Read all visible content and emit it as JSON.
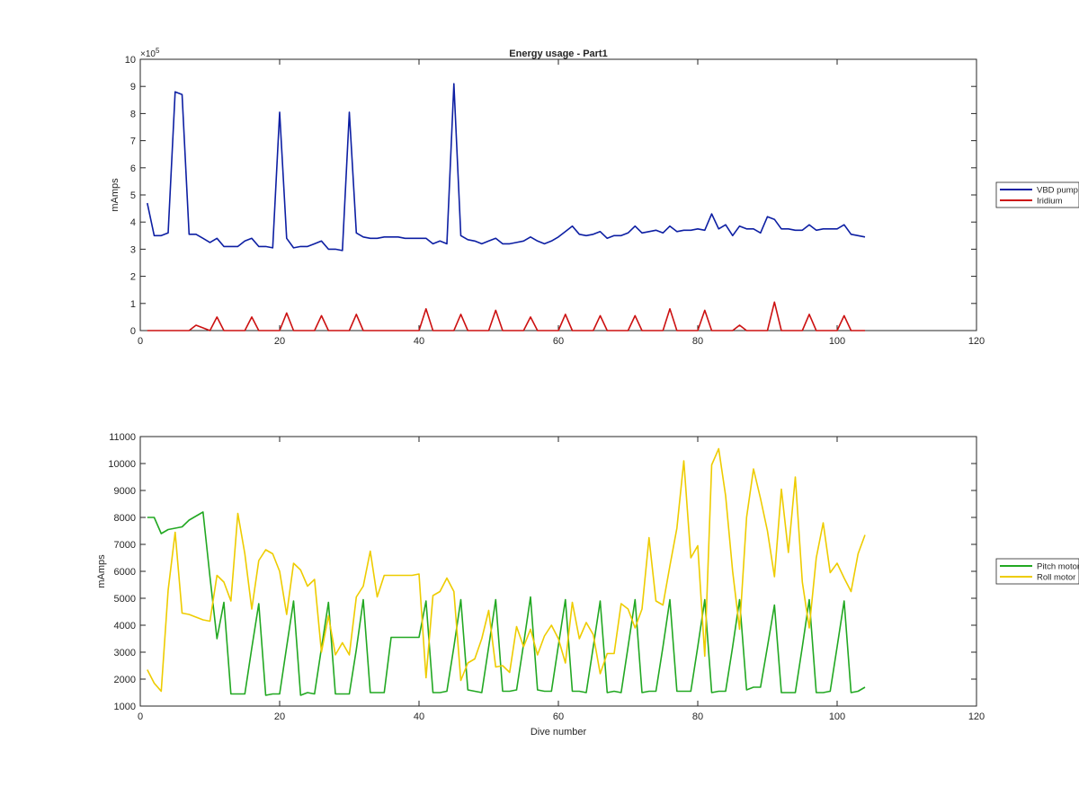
{
  "figure_title": "Energy usage - Part1",
  "chart_data": [
    {
      "type": "line",
      "title": "Energy usage - Part1",
      "xlabel": "",
      "ylabel": "mAmps",
      "xlim": [
        0,
        120
      ],
      "ylim": [
        0,
        10
      ],
      "y_exponent_label": "×10",
      "y_exponent": "5",
      "x_ticks": [
        "0",
        "20",
        "40",
        "60",
        "80",
        "100",
        "120"
      ],
      "y_ticks": [
        "0",
        "1",
        "2",
        "3",
        "4",
        "5",
        "6",
        "7",
        "8",
        "9",
        "10"
      ],
      "grid": false,
      "legend_position": "right",
      "x": [
        1,
        2,
        3,
        4,
        5,
        6,
        7,
        8,
        9,
        10,
        11,
        12,
        13,
        14,
        15,
        16,
        17,
        18,
        19,
        20,
        21,
        22,
        23,
        24,
        25,
        26,
        27,
        28,
        29,
        30,
        31,
        32,
        33,
        34,
        35,
        36,
        37,
        38,
        39,
        40,
        41,
        42,
        43,
        44,
        45,
        46,
        47,
        48,
        49,
        50,
        51,
        52,
        53,
        54,
        55,
        56,
        57,
        58,
        59,
        60,
        61,
        62,
        63,
        64,
        65,
        66,
        67,
        68,
        69,
        70,
        71,
        72,
        73,
        74,
        75,
        76,
        77,
        78,
        79,
        80,
        81,
        82,
        83,
        84,
        85,
        86,
        87,
        88,
        89,
        90,
        91,
        92,
        93,
        94,
        95,
        96,
        97,
        98,
        99,
        100,
        101,
        102,
        103,
        104
      ],
      "series": [
        {
          "name": "VBD pump",
          "color": "#0d1fa3",
          "values": [
            4.7,
            3.5,
            3.5,
            3.6,
            8.8,
            8.7,
            3.55,
            3.55,
            3.4,
            3.25,
            3.4,
            3.1,
            3.1,
            3.1,
            3.3,
            3.4,
            3.1,
            3.1,
            3.05,
            8.05,
            3.4,
            3.05,
            3.1,
            3.1,
            3.2,
            3.3,
            3.0,
            3.0,
            2.95,
            8.05,
            3.6,
            3.45,
            3.4,
            3.4,
            3.45,
            3.45,
            3.45,
            3.4,
            3.4,
            3.4,
            3.4,
            3.2,
            3.3,
            3.2,
            9.1,
            3.5,
            3.35,
            3.3,
            3.2,
            3.3,
            3.4,
            3.2,
            3.2,
            3.25,
            3.3,
            3.45,
            3.3,
            3.2,
            3.3,
            3.45,
            3.65,
            3.85,
            3.55,
            3.5,
            3.55,
            3.65,
            3.4,
            3.5,
            3.5,
            3.6,
            3.85,
            3.6,
            3.65,
            3.7,
            3.6,
            3.85,
            3.65,
            3.7,
            3.7,
            3.75,
            3.7,
            4.3,
            3.75,
            3.9,
            3.5,
            3.85,
            3.75,
            3.75,
            3.6,
            4.2,
            4.1,
            3.75,
            3.75,
            3.7,
            3.7,
            3.9,
            3.7,
            3.75,
            3.75,
            3.75,
            3.9,
            3.55,
            3.5,
            3.45
          ]
        },
        {
          "name": "Iridium",
          "color": "#cc1111",
          "values": [
            0,
            0,
            0,
            0,
            0,
            0,
            0,
            0.2,
            0.1,
            0,
            0.5,
            0,
            0,
            0,
            0,
            0.5,
            0,
            0,
            0,
            0,
            0.65,
            0,
            0,
            0,
            0,
            0.55,
            0,
            0,
            0,
            0,
            0.6,
            0,
            0,
            0,
            0,
            0,
            0,
            0,
            0,
            0,
            0.8,
            0,
            0,
            0,
            0,
            0.6,
            0,
            0,
            0,
            0,
            0.75,
            0,
            0,
            0,
            0,
            0.5,
            0,
            0,
            0,
            0,
            0.6,
            0,
            0,
            0,
            0,
            0.55,
            0,
            0,
            0,
            0,
            0.55,
            0,
            0,
            0,
            0,
            0.8,
            0,
            0,
            0,
            0,
            0.75,
            0,
            0,
            0,
            0,
            0.2,
            0,
            0,
            0,
            0,
            1.05,
            0,
            0,
            0,
            0,
            0.6,
            0,
            0,
            0,
            0,
            0.55,
            0,
            0,
            0
          ]
        }
      ]
    },
    {
      "type": "line",
      "title": "",
      "xlabel": "Dive number",
      "ylabel": "mAmps",
      "xlim": [
        0,
        120
      ],
      "ylim": [
        1000,
        11000
      ],
      "x_ticks": [
        "0",
        "20",
        "40",
        "60",
        "80",
        "100",
        "120"
      ],
      "y_ticks": [
        "1000",
        "2000",
        "3000",
        "4000",
        "5000",
        "6000",
        "7000",
        "8000",
        "9000",
        "10000",
        "11000"
      ],
      "grid": false,
      "legend_position": "right",
      "x": [
        1,
        2,
        3,
        4,
        5,
        6,
        7,
        8,
        9,
        10,
        11,
        12,
        13,
        14,
        15,
        16,
        17,
        18,
        19,
        20,
        21,
        22,
        23,
        24,
        25,
        26,
        27,
        28,
        29,
        30,
        31,
        32,
        33,
        34,
        35,
        36,
        37,
        38,
        39,
        40,
        41,
        42,
        43,
        44,
        45,
        46,
        47,
        48,
        49,
        50,
        51,
        52,
        53,
        54,
        55,
        56,
        57,
        58,
        59,
        60,
        61,
        62,
        63,
        64,
        65,
        66,
        67,
        68,
        69,
        70,
        71,
        72,
        73,
        74,
        75,
        76,
        77,
        78,
        79,
        80,
        81,
        82,
        83,
        84,
        85,
        86,
        87,
        88,
        89,
        90,
        91,
        92,
        93,
        94,
        95,
        96,
        97,
        98,
        99,
        100,
        101,
        102,
        103,
        104
      ],
      "series": [
        {
          "name": "Pitch motor",
          "color": "#22a822",
          "values": [
            8000,
            8000,
            7400,
            7550,
            7600,
            7650,
            7900,
            8050,
            8200,
            5800,
            3500,
            4850,
            1450,
            1450,
            1450,
            3150,
            4800,
            1400,
            1450,
            1450,
            3200,
            4900,
            1400,
            1500,
            1450,
            3150,
            4850,
            1450,
            1450,
            1450,
            3100,
            4950,
            1500,
            1500,
            1500,
            3550,
            3550,
            3550,
            3550,
            3550,
            4900,
            1500,
            1500,
            1550,
            3200,
            4950,
            1600,
            1550,
            1500,
            3200,
            4950,
            1550,
            1550,
            1600,
            3300,
            5050,
            1600,
            1550,
            1550,
            3250,
            4950,
            1550,
            1550,
            1500,
            3200,
            4900,
            1500,
            1550,
            1500,
            3200,
            4950,
            1500,
            1550,
            1550,
            3200,
            4950,
            1550,
            1550,
            1550,
            3200,
            4950,
            1500,
            1550,
            1550,
            3200,
            4950,
            1600,
            1700,
            1700,
            3200,
            4750,
            1500,
            1500,
            1500,
            3200,
            4950,
            1500,
            1500,
            1550,
            3200,
            4900,
            1500,
            1550,
            1700
          ]
        },
        {
          "name": "Roll motor",
          "color": "#eecc00",
          "values": [
            2350,
            1850,
            1550,
            5300,
            7450,
            4450,
            4400,
            4300,
            4200,
            4150,
            5850,
            5600,
            4900,
            8150,
            6650,
            4600,
            6400,
            6800,
            6650,
            6000,
            4400,
            6300,
            6050,
            5450,
            5700,
            3000,
            4350,
            2900,
            3350,
            2900,
            5050,
            5450,
            6750,
            5050,
            5850,
            5850,
            5850,
            5850,
            5850,
            5900,
            2050,
            5100,
            5250,
            5750,
            5250,
            1950,
            2600,
            2750,
            3500,
            4550,
            2450,
            2500,
            2250,
            3950,
            3200,
            3850,
            2900,
            3600,
            4000,
            3500,
            2600,
            4850,
            3500,
            4100,
            3650,
            2200,
            2950,
            2950,
            4800,
            4600,
            3900,
            4600,
            7250,
            4900,
            4750,
            6200,
            7600,
            10100,
            6500,
            6950,
            2850,
            9950,
            10550,
            8800,
            6000,
            3850,
            8000,
            9800,
            8700,
            7500,
            5800,
            9050,
            6700,
            9500,
            5600,
            3900,
            6500,
            7800,
            5950,
            6300,
            5750,
            5250,
            6650,
            7350
          ]
        }
      ]
    }
  ]
}
